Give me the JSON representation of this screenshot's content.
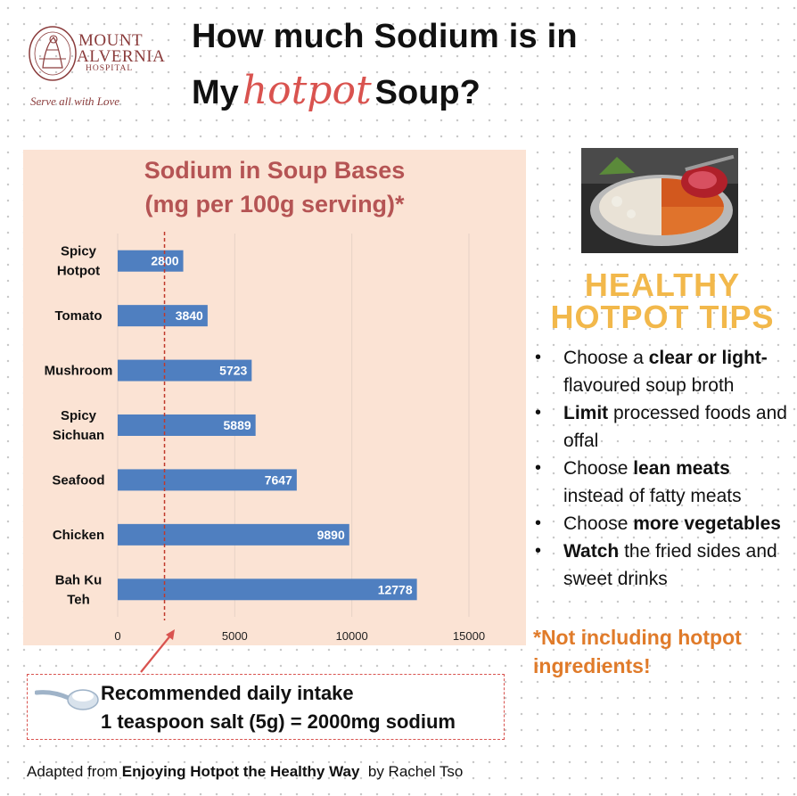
{
  "logo": {
    "name_line1": "MOUNT",
    "name_line2": "ALVERNIA",
    "name_line3": "HOSPITAL",
    "tagline": "Serve all with Love"
  },
  "title": {
    "line1": "How much Sodium is in",
    "line2_pre": "My",
    "line2_script": "hotpot",
    "line2_post": "Soup?"
  },
  "chart_data": {
    "type": "bar",
    "orientation": "horizontal",
    "title": "Sodium in Soup Bases",
    "subtitle": "(mg per 100g serving)*",
    "categories": [
      [
        "Spicy",
        "Hotpot"
      ],
      [
        "Tomato"
      ],
      [
        "Mushroom"
      ],
      [
        "Spicy",
        "Sichuan"
      ],
      [
        "Seafood"
      ],
      [
        "Chicken"
      ],
      [
        "Bah Ku",
        "Teh"
      ]
    ],
    "values": [
      2800,
      3840,
      5723,
      5889,
      7647,
      9890,
      12778
    ],
    "xlim": [
      0,
      15000
    ],
    "xticks": [
      0,
      5000,
      10000,
      15000
    ],
    "reference_line": 2000,
    "grid": true,
    "colors": {
      "bar": "#4f7fc0",
      "panel": "#fbe3d4",
      "title": "#b55454",
      "reference": "#c0392b"
    }
  },
  "recommendation": {
    "line1": "Recommended daily intake",
    "line2": "1 teaspoon salt (5g) = 2000mg sodium",
    "icon": "salt-spoon-icon"
  },
  "source": {
    "prefix": "Adapted from ",
    "book": "Enjoying Hotpot the Healthy Way",
    "suffix": "  by Rachel Tso"
  },
  "tips": {
    "title_line1": "HEALTHY",
    "title_line2": "HOTPOT TIPS",
    "items": [
      {
        "pre": "Choose a ",
        "bold": "clear or light-",
        "post": " flavoured soup broth"
      },
      {
        "pre": "",
        "bold": "Limit",
        "post": " processed foods and offal"
      },
      {
        "pre": "Choose ",
        "bold": "lean meats",
        "post": " instead of fatty meats"
      },
      {
        "pre": "Choose ",
        "bold": "more vegetables",
        "post": ""
      },
      {
        "pre": "",
        "bold": "Watch",
        "post": " the fried sides and sweet drinks"
      }
    ],
    "note_line1": "*Not including hotpot",
    "note_line2": "ingredients!"
  },
  "colors": {
    "tips_title": "#f2b84b",
    "note": "#e07b2a",
    "hotpot_script": "#d9534f"
  }
}
